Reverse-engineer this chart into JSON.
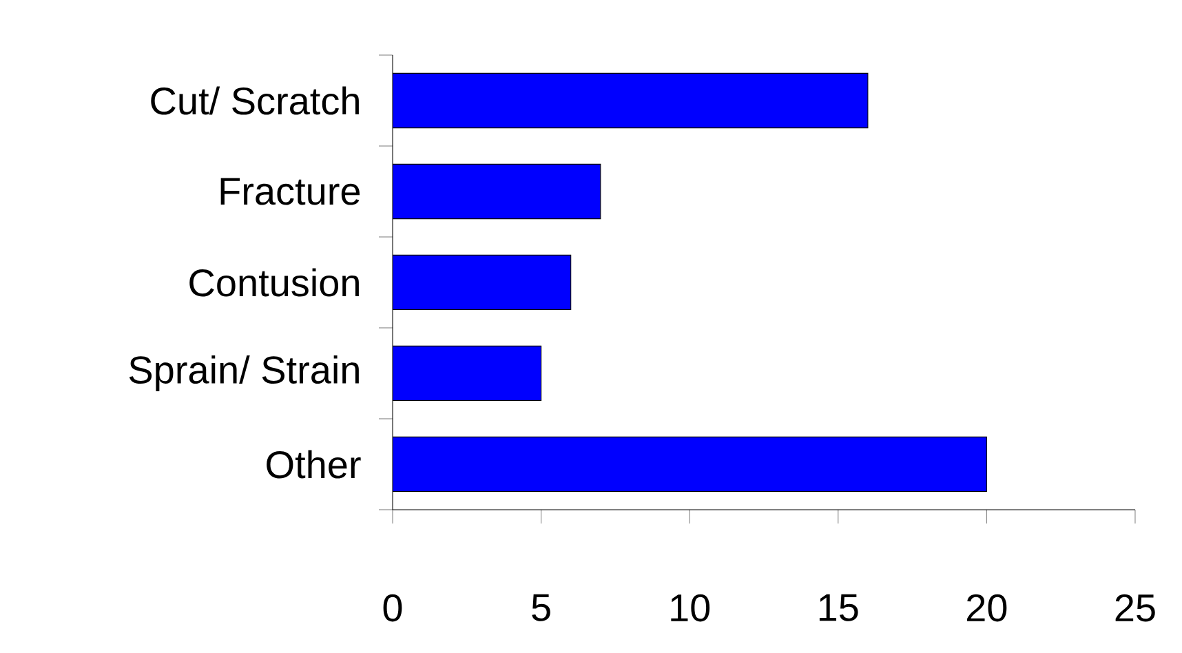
{
  "chart_data": {
    "type": "bar",
    "orientation": "horizontal",
    "categories": [
      "Cut/ Scratch",
      "Fracture",
      "Contusion",
      "Sprain/ Strain",
      "Other"
    ],
    "values": [
      16,
      7,
      6,
      5,
      20
    ],
    "color": "#0000ff",
    "xlim": [
      0,
      25
    ],
    "xticks": [
      0,
      5,
      10,
      15,
      20,
      25
    ]
  }
}
